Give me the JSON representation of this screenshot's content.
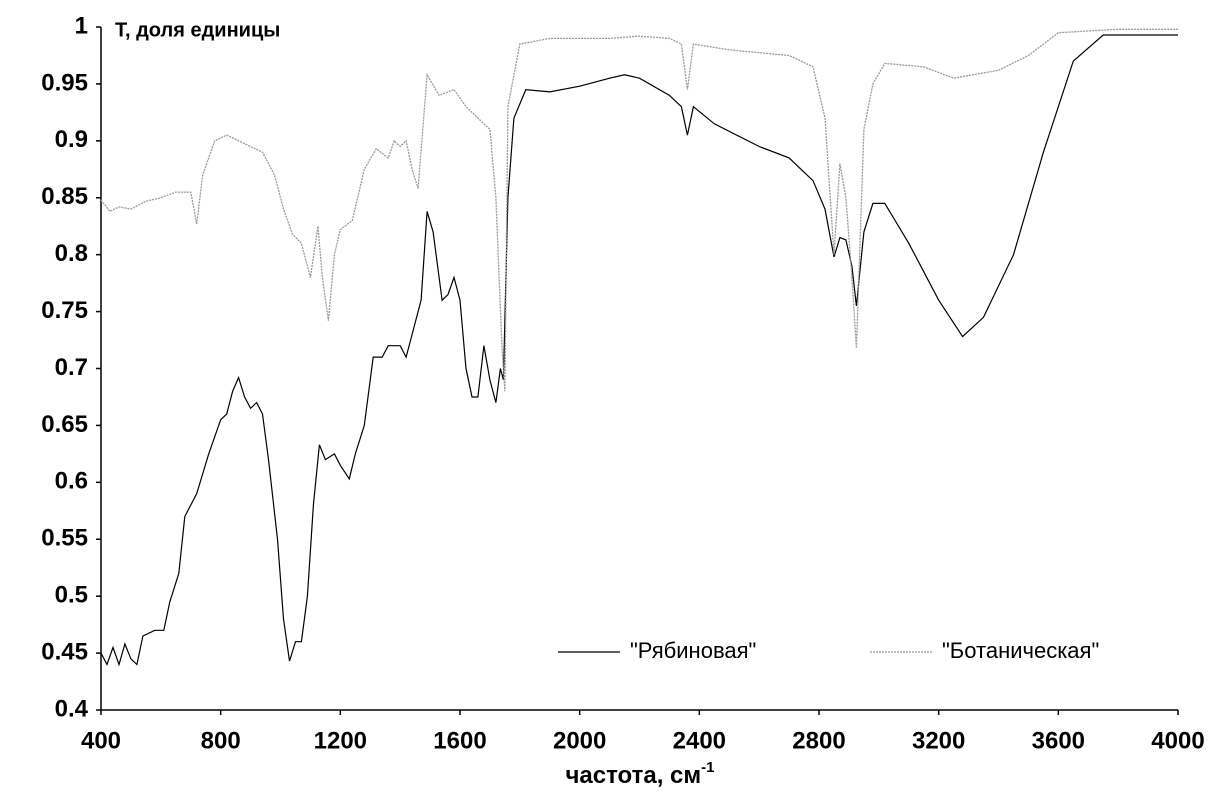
{
  "chart_data": {
    "type": "line",
    "ylabel": "T, доля единицы",
    "xlabel": {
      "text": "частота, см",
      "superscript": "-1"
    },
    "xlim": [
      400,
      4000
    ],
    "xticks": [
      400,
      800,
      1200,
      1600,
      2000,
      2400,
      2800,
      3200,
      3600,
      4000
    ],
    "ylim": [
      0.4,
      1
    ],
    "yticks": [
      0.4,
      0.45,
      0.5,
      0.55,
      0.6,
      0.65,
      0.7,
      0.75,
      0.8,
      0.85,
      0.9,
      0.95,
      1
    ],
    "grid": false,
    "legend": "lower right",
    "series": [
      {
        "name": "\"Рябиновая\"",
        "color": "#000000",
        "dash": false,
        "x": [
          400,
          420,
          440,
          460,
          480,
          500,
          520,
          540,
          580,
          610,
          630,
          660,
          680,
          720,
          760,
          800,
          820,
          840,
          860,
          880,
          900,
          920,
          940,
          960,
          990,
          1010,
          1030,
          1050,
          1070,
          1090,
          1110,
          1130,
          1150,
          1180,
          1200,
          1230,
          1250,
          1280,
          1310,
          1340,
          1360,
          1400,
          1420,
          1450,
          1470,
          1490,
          1510,
          1540,
          1560,
          1580,
          1600,
          1620,
          1640,
          1660,
          1680,
          1700,
          1720,
          1735,
          1745,
          1760,
          1780,
          1820,
          1900,
          2000,
          2100,
          2150,
          2200,
          2300,
          2340,
          2360,
          2380,
          2450,
          2600,
          2700,
          2780,
          2820,
          2850,
          2870,
          2890,
          2910,
          2925,
          2950,
          2980,
          3020,
          3100,
          3200,
          3280,
          3350,
          3450,
          3550,
          3650,
          3750,
          3900,
          4000
        ],
        "values": [
          0.45,
          0.44,
          0.455,
          0.44,
          0.458,
          0.445,
          0.44,
          0.465,
          0.47,
          0.47,
          0.495,
          0.52,
          0.57,
          0.59,
          0.625,
          0.655,
          0.66,
          0.68,
          0.692,
          0.675,
          0.665,
          0.67,
          0.66,
          0.62,
          0.55,
          0.48,
          0.443,
          0.46,
          0.46,
          0.5,
          0.58,
          0.633,
          0.62,
          0.625,
          0.615,
          0.603,
          0.625,
          0.65,
          0.71,
          0.71,
          0.72,
          0.72,
          0.71,
          0.74,
          0.76,
          0.838,
          0.82,
          0.76,
          0.765,
          0.78,
          0.76,
          0.7,
          0.675,
          0.675,
          0.72,
          0.69,
          0.67,
          0.7,
          0.69,
          0.85,
          0.92,
          0.945,
          0.943,
          0.948,
          0.955,
          0.958,
          0.955,
          0.94,
          0.93,
          0.905,
          0.93,
          0.915,
          0.895,
          0.885,
          0.865,
          0.84,
          0.798,
          0.815,
          0.813,
          0.79,
          0.755,
          0.82,
          0.845,
          0.845,
          0.81,
          0.76,
          0.728,
          0.745,
          0.8,
          0.89,
          0.97,
          0.993,
          0.993,
          0.993
        ]
      },
      {
        "name": "\"Ботаническая\"",
        "color": "#999999",
        "dash": true,
        "x": [
          400,
          430,
          460,
          500,
          550,
          600,
          650,
          700,
          720,
          740,
          780,
          820,
          860,
          900,
          940,
          980,
          1010,
          1040,
          1070,
          1100,
          1125,
          1140,
          1160,
          1180,
          1200,
          1240,
          1280,
          1320,
          1360,
          1380,
          1400,
          1420,
          1440,
          1460,
          1490,
          1530,
          1580,
          1620,
          1660,
          1700,
          1720,
          1740,
          1750,
          1760,
          1800,
          1900,
          2100,
          2200,
          2300,
          2340,
          2360,
          2380,
          2500,
          2700,
          2780,
          2820,
          2850,
          2870,
          2890,
          2910,
          2925,
          2950,
          2980,
          3020,
          3150,
          3250,
          3400,
          3500,
          3600,
          3800,
          4000
        ],
        "values": [
          0.848,
          0.838,
          0.842,
          0.84,
          0.847,
          0.85,
          0.855,
          0.855,
          0.827,
          0.87,
          0.9,
          0.905,
          0.9,
          0.895,
          0.89,
          0.87,
          0.84,
          0.818,
          0.81,
          0.78,
          0.825,
          0.78,
          0.742,
          0.8,
          0.822,
          0.83,
          0.875,
          0.893,
          0.885,
          0.9,
          0.895,
          0.9,
          0.875,
          0.858,
          0.958,
          0.94,
          0.945,
          0.93,
          0.92,
          0.91,
          0.85,
          0.72,
          0.68,
          0.93,
          0.985,
          0.99,
          0.99,
          0.992,
          0.99,
          0.985,
          0.945,
          0.985,
          0.98,
          0.975,
          0.965,
          0.92,
          0.8,
          0.88,
          0.85,
          0.78,
          0.718,
          0.91,
          0.95,
          0.968,
          0.965,
          0.955,
          0.962,
          0.975,
          0.995,
          0.998,
          0.998
        ]
      }
    ]
  }
}
